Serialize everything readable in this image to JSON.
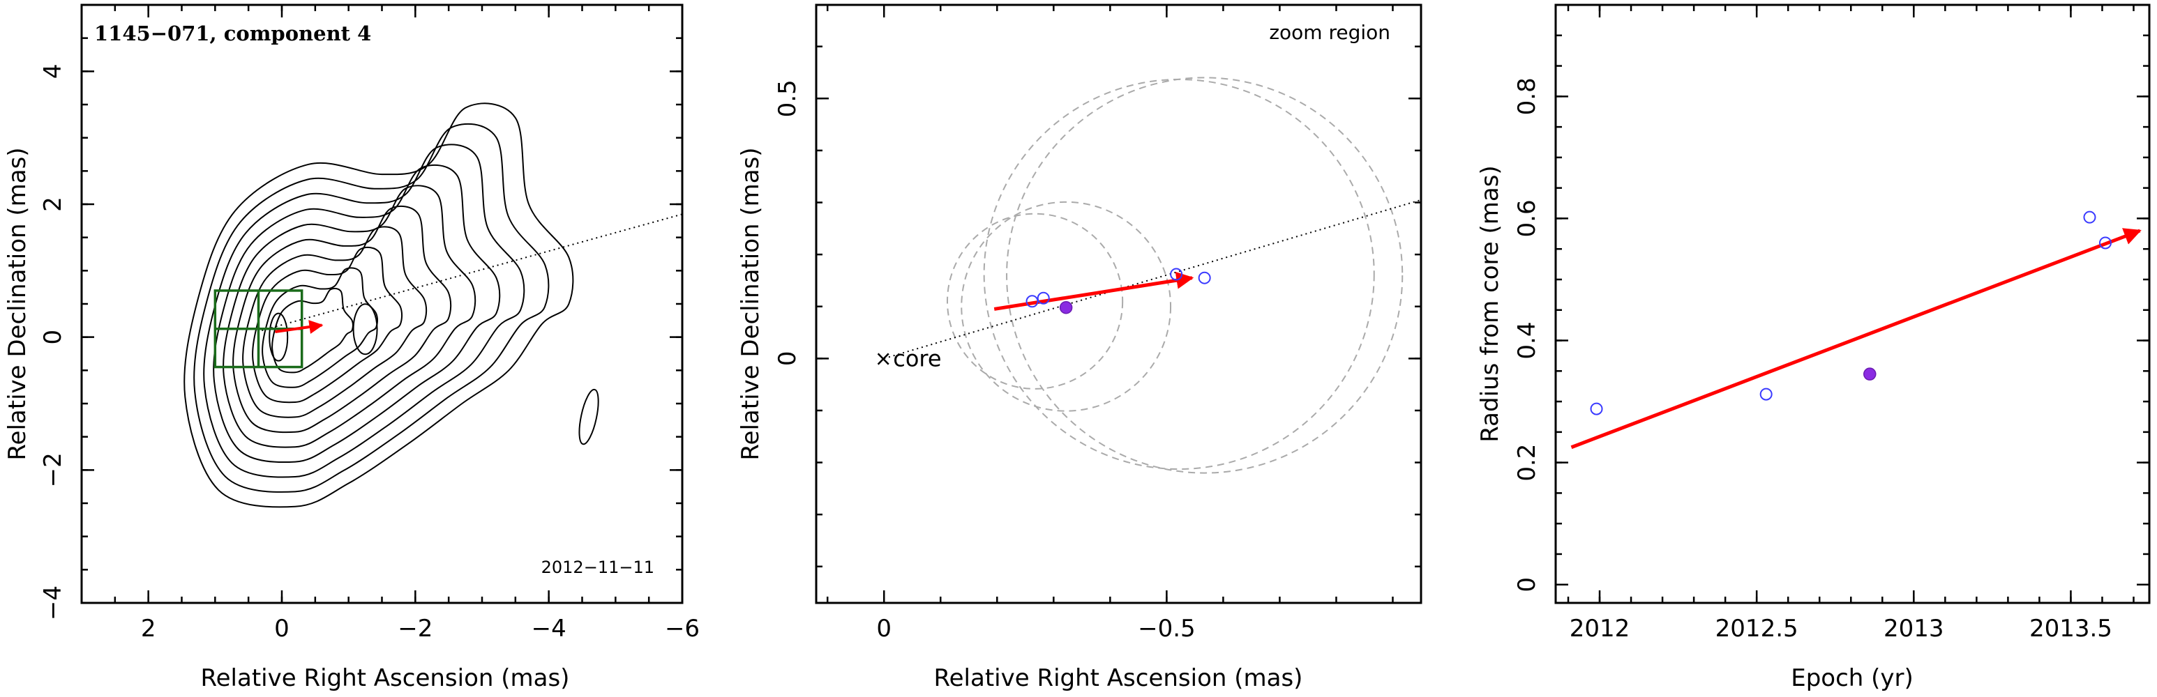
{
  "chart_data": [
    {
      "type": "contour",
      "title": "1145−071, component 4",
      "epoch_label": "2012−11−11",
      "xlabel": "Relative Right Ascension (mas)",
      "ylabel": "Relative Declination (mas)",
      "xlim": [
        3,
        -6
      ],
      "ylim": [
        -4,
        5
      ],
      "xticks": [
        2,
        0,
        -2,
        -4,
        -6
      ],
      "yticks": [
        -4,
        -2,
        0,
        2,
        4
      ],
      "jet_axis": {
        "x": [
          0.3,
          -6
        ],
        "y": [
          0.1,
          1.85
        ]
      },
      "zoom_box": {
        "x": [
          1.0,
          -0.3
        ],
        "y": [
          -0.45,
          0.7
        ]
      },
      "colors": {
        "contour": "#000000",
        "zoom_box": "#1a6b1a",
        "arrow": "#ff0000"
      }
    },
    {
      "type": "scatter",
      "title": "",
      "annotation": "zoom region",
      "core_label": "core",
      "xlabel": "Relative Right Ascension (mas)",
      "ylabel": "Relative Declination (mas)",
      "xlim": [
        0.12,
        -0.95
      ],
      "ylim": [
        -0.47,
        0.68
      ],
      "xticks": [
        0,
        -0.5
      ],
      "yticks": [
        0,
        0.5
      ],
      "points_open": [
        {
          "x": -0.262,
          "y": 0.11
        },
        {
          "x": -0.282,
          "y": 0.116
        },
        {
          "x": -0.517,
          "y": 0.162
        },
        {
          "x": -0.567,
          "y": 0.155
        }
      ],
      "points_filled": [
        {
          "x": -0.322,
          "y": 0.098
        }
      ],
      "error_circles": [
        {
          "x": -0.267,
          "y": 0.11,
          "r": 0.155
        },
        {
          "x": -0.322,
          "y": 0.1,
          "r": 0.185
        },
        {
          "x": -0.522,
          "y": 0.162,
          "r": 0.345
        },
        {
          "x": -0.567,
          "y": 0.16,
          "r": 0.35
        }
      ],
      "arrow": {
        "from": [
          -0.195,
          0.095
        ],
        "to": [
          -0.545,
          0.155
        ]
      },
      "jet_axis": {
        "x": [
          0,
          -0.95
        ],
        "y": [
          0,
          0.305
        ]
      },
      "colors": {
        "points": "#3a3aff",
        "filled": "#8a2be2",
        "arrow": "#ff0000",
        "circles": "#aaaaaa"
      }
    },
    {
      "type": "scatter",
      "title": "",
      "xlabel": "Epoch (yr)",
      "ylabel": "Radius from core (mas)",
      "xlim": [
        2011.86,
        2013.75
      ],
      "ylim": [
        -0.03,
        0.95
      ],
      "xticks": [
        2012,
        2012.5,
        2013,
        2013.5
      ],
      "yticks": [
        0,
        0.2,
        0.4,
        0.6,
        0.8
      ],
      "points_open": [
        {
          "x": 2011.99,
          "y": 0.288
        },
        {
          "x": 2012.53,
          "y": 0.312
        },
        {
          "x": 2013.56,
          "y": 0.602
        },
        {
          "x": 2013.61,
          "y": 0.56
        }
      ],
      "points_filled": [
        {
          "x": 2012.86,
          "y": 0.345
        }
      ],
      "fit_arrow": {
        "from": [
          2011.91,
          0.225
        ],
        "to": [
          2013.72,
          0.58
        ]
      },
      "colors": {
        "points": "#3a3aff",
        "filled": "#8a2be2",
        "arrow": "#ff0000"
      }
    }
  ]
}
